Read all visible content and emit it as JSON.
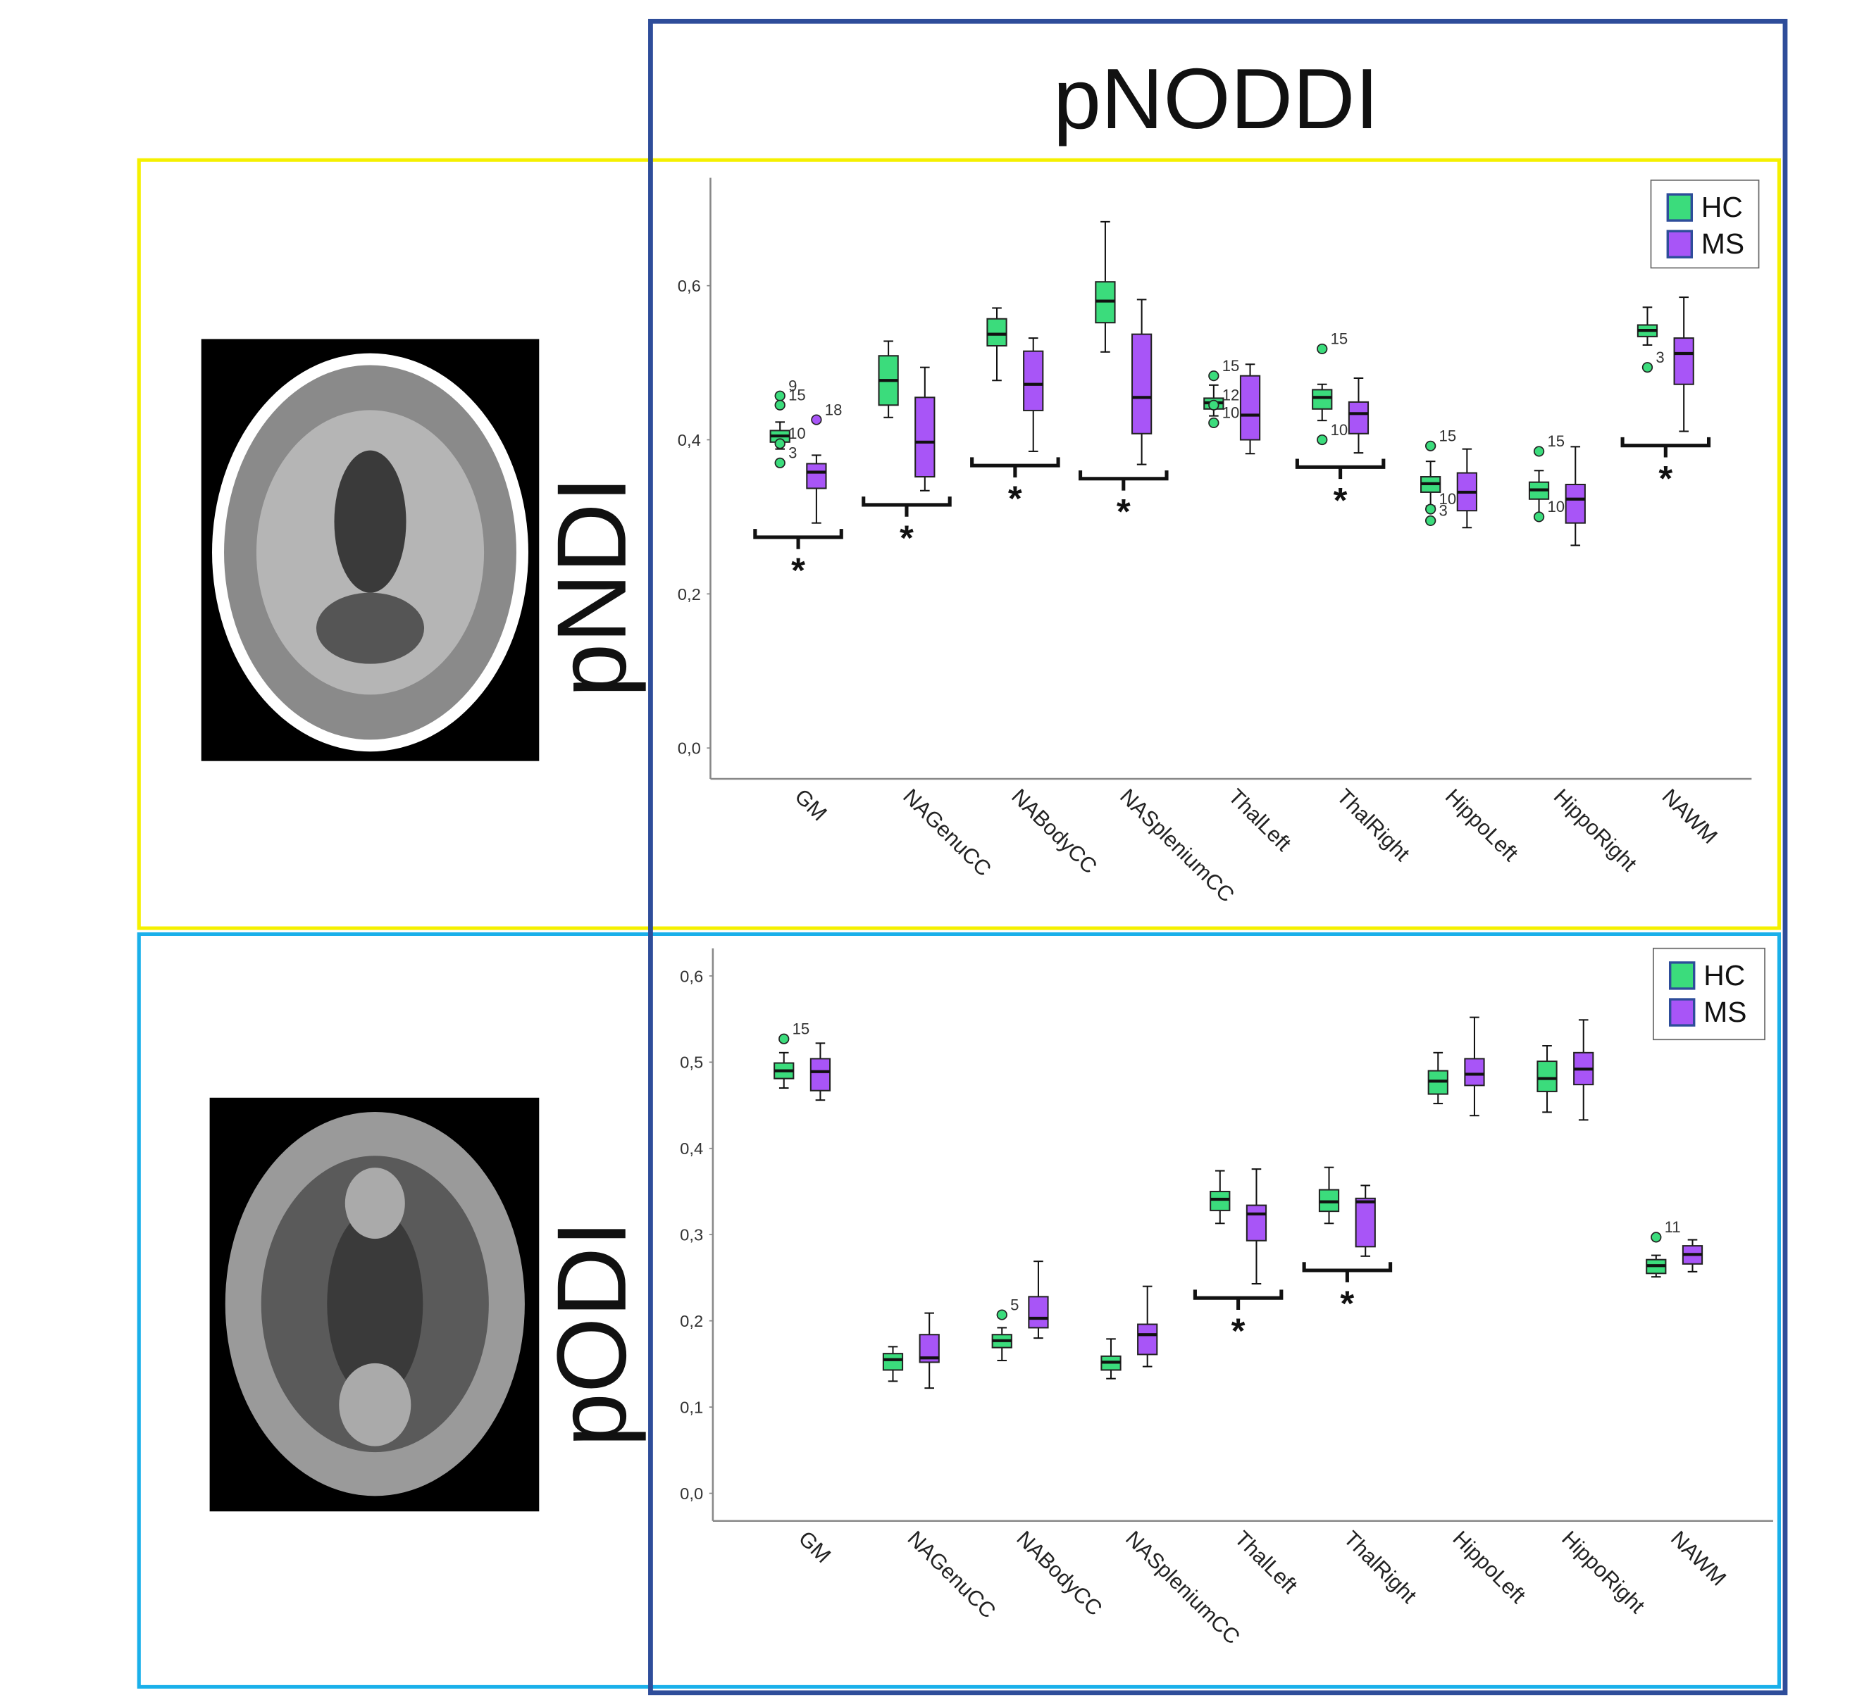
{
  "title": "pNODDI",
  "chart_data": [
    {
      "type": "box",
      "ylabel": "pNDI",
      "categories": [
        "GM",
        "NAGenuCC",
        "NABodyCC",
        "NASpleniumCC",
        "ThalLeft",
        "ThalRight",
        "HippoLeft",
        "HippoRight",
        "NAWM"
      ],
      "ylim": [
        -0.04,
        0.74
      ],
      "yticks": [
        {
          "value": 0,
          "label": "0,0"
        },
        {
          "value": 0.2,
          "label": "0,2"
        },
        {
          "value": 0.4,
          "label": "0,4"
        },
        {
          "value": 0.6,
          "label": "0,6"
        }
      ],
      "grid": false,
      "legend": "top-right",
      "significant": [
        true,
        true,
        true,
        true,
        false,
        true,
        false,
        false,
        true
      ],
      "significance_marker": "*",
      "series": [
        {
          "name": "HC",
          "color": "#3bdc7c",
          "boxes": [
            {
              "min": 0.388,
              "q1": 0.397,
              "median": 0.405,
              "q3": 0.412,
              "max": 0.423,
              "outliers": [
                {
                  "value": 0.457,
                  "label": "9"
                },
                {
                  "value": 0.445,
                  "label": "15"
                },
                {
                  "value": 0.395,
                  "label": "10"
                },
                {
                  "value": 0.37,
                  "label": "3"
                }
              ]
            },
            {
              "min": 0.429,
              "q1": 0.445,
              "median": 0.477,
              "q3": 0.509,
              "max": 0.528,
              "outliers": []
            },
            {
              "min": 0.477,
              "q1": 0.522,
              "median": 0.537,
              "q3": 0.557,
              "max": 0.571,
              "outliers": []
            },
            {
              "min": 0.514,
              "q1": 0.552,
              "median": 0.58,
              "q3": 0.605,
              "max": 0.683,
              "outliers": []
            },
            {
              "min": 0.431,
              "q1": 0.44,
              "median": 0.448,
              "q3": 0.454,
              "max": 0.471,
              "outliers": [
                {
                  "value": 0.483,
                  "label": "15"
                },
                {
                  "value": 0.445,
                  "label": "12"
                },
                {
                  "value": 0.422,
                  "label": "10"
                }
              ]
            },
            {
              "min": 0.425,
              "q1": 0.44,
              "median": 0.455,
              "q3": 0.465,
              "max": 0.472,
              "outliers": [
                {
                  "value": 0.518,
                  "label": "15"
                },
                {
                  "value": 0.4,
                  "label": "10"
                }
              ]
            },
            {
              "min": 0.314,
              "q1": 0.332,
              "median": 0.343,
              "q3": 0.352,
              "max": 0.372,
              "outliers": [
                {
                  "value": 0.392,
                  "label": "15"
                },
                {
                  "value": 0.31,
                  "label": "10"
                },
                {
                  "value": 0.295,
                  "label": "3"
                }
              ]
            },
            {
              "min": 0.302,
              "q1": 0.323,
              "median": 0.335,
              "q3": 0.345,
              "max": 0.36,
              "outliers": [
                {
                  "value": 0.385,
                  "label": "15"
                },
                {
                  "value": 0.3,
                  "label": "10"
                }
              ]
            },
            {
              "min": 0.523,
              "q1": 0.534,
              "median": 0.542,
              "q3": 0.549,
              "max": 0.572,
              "outliers": [
                {
                  "value": 0.494,
                  "label": "3"
                }
              ]
            }
          ]
        },
        {
          "name": "MS",
          "color": "#a855f7",
          "boxes": [
            {
              "min": 0.292,
              "q1": 0.337,
              "median": 0.358,
              "q3": 0.369,
              "max": 0.38,
              "outliers": [
                {
                  "value": 0.426,
                  "label": "18"
                }
              ]
            },
            {
              "min": 0.334,
              "q1": 0.352,
              "median": 0.397,
              "q3": 0.455,
              "max": 0.494,
              "outliers": []
            },
            {
              "min": 0.385,
              "q1": 0.438,
              "median": 0.472,
              "q3": 0.515,
              "max": 0.532,
              "outliers": []
            },
            {
              "min": 0.368,
              "q1": 0.408,
              "median": 0.455,
              "q3": 0.537,
              "max": 0.582,
              "outliers": []
            },
            {
              "min": 0.382,
              "q1": 0.4,
              "median": 0.432,
              "q3": 0.483,
              "max": 0.498,
              "outliers": []
            },
            {
              "min": 0.383,
              "q1": 0.408,
              "median": 0.434,
              "q3": 0.449,
              "max": 0.48,
              "outliers": []
            },
            {
              "min": 0.286,
              "q1": 0.308,
              "median": 0.332,
              "q3": 0.357,
              "max": 0.388,
              "outliers": []
            },
            {
              "min": 0.263,
              "q1": 0.292,
              "median": 0.323,
              "q3": 0.342,
              "max": 0.391,
              "outliers": []
            },
            {
              "min": 0.411,
              "q1": 0.472,
              "median": 0.512,
              "q3": 0.532,
              "max": 0.585,
              "outliers": []
            }
          ]
        }
      ]
    },
    {
      "type": "box",
      "ylabel": "pODI",
      "categories": [
        "GM",
        "NAGenuCC",
        "NABodyCC",
        "NASpleniumCC",
        "ThalLeft",
        "ThalRight",
        "HippoLeft",
        "HippoRight",
        "NAWM"
      ],
      "ylim": [
        -0.032,
        0.632
      ],
      "yticks": [
        {
          "value": 0,
          "label": "0,0"
        },
        {
          "value": 0.1,
          "label": "0,1"
        },
        {
          "value": 0.2,
          "label": "0,2"
        },
        {
          "value": 0.3,
          "label": "0,3"
        },
        {
          "value": 0.4,
          "label": "0,4"
        },
        {
          "value": 0.5,
          "label": "0,5"
        },
        {
          "value": 0.6,
          "label": "0,6"
        }
      ],
      "grid": false,
      "legend": "top-right",
      "significant": [
        false,
        false,
        false,
        false,
        true,
        true,
        false,
        false,
        false
      ],
      "significance_marker": "*",
      "series": [
        {
          "name": "HC",
          "color": "#3bdc7c",
          "boxes": [
            {
              "min": 0.47,
              "q1": 0.481,
              "median": 0.49,
              "q3": 0.499,
              "max": 0.511,
              "outliers": [
                {
                  "value": 0.527,
                  "label": "15"
                }
              ]
            },
            {
              "min": 0.13,
              "q1": 0.143,
              "median": 0.155,
              "q3": 0.162,
              "max": 0.17,
              "outliers": []
            },
            {
              "min": 0.154,
              "q1": 0.169,
              "median": 0.177,
              "q3": 0.184,
              "max": 0.192,
              "outliers": [
                {
                  "value": 0.207,
                  "label": "5"
                }
              ]
            },
            {
              "min": 0.133,
              "q1": 0.143,
              "median": 0.152,
              "q3": 0.159,
              "max": 0.179,
              "outliers": []
            },
            {
              "min": 0.313,
              "q1": 0.328,
              "median": 0.341,
              "q3": 0.35,
              "max": 0.374,
              "outliers": []
            },
            {
              "min": 0.313,
              "q1": 0.327,
              "median": 0.338,
              "q3": 0.352,
              "max": 0.378,
              "outliers": []
            },
            {
              "min": 0.452,
              "q1": 0.463,
              "median": 0.478,
              "q3": 0.49,
              "max": 0.511,
              "outliers": []
            },
            {
              "min": 0.442,
              "q1": 0.466,
              "median": 0.481,
              "q3": 0.501,
              "max": 0.519,
              "outliers": []
            },
            {
              "min": 0.251,
              "q1": 0.255,
              "median": 0.264,
              "q3": 0.271,
              "max": 0.276,
              "outliers": [
                {
                  "value": 0.297,
                  "label": "11"
                }
              ]
            }
          ]
        },
        {
          "name": "MS",
          "color": "#a855f7",
          "boxes": [
            {
              "min": 0.456,
              "q1": 0.467,
              "median": 0.489,
              "q3": 0.504,
              "max": 0.522,
              "outliers": []
            },
            {
              "min": 0.122,
              "q1": 0.152,
              "median": 0.157,
              "q3": 0.184,
              "max": 0.209,
              "outliers": []
            },
            {
              "min": 0.18,
              "q1": 0.192,
              "median": 0.203,
              "q3": 0.228,
              "max": 0.269,
              "outliers": []
            },
            {
              "min": 0.147,
              "q1": 0.161,
              "median": 0.184,
              "q3": 0.196,
              "max": 0.24,
              "outliers": []
            },
            {
              "min": 0.243,
              "q1": 0.293,
              "median": 0.324,
              "q3": 0.334,
              "max": 0.376,
              "outliers": []
            },
            {
              "min": 0.275,
              "q1": 0.286,
              "median": 0.338,
              "q3": 0.342,
              "max": 0.357,
              "outliers": []
            },
            {
              "min": 0.438,
              "q1": 0.473,
              "median": 0.486,
              "q3": 0.504,
              "max": 0.552,
              "outliers": []
            },
            {
              "min": 0.433,
              "q1": 0.474,
              "median": 0.492,
              "q3": 0.511,
              "max": 0.549,
              "outliers": []
            },
            {
              "min": 0.257,
              "q1": 0.266,
              "median": 0.277,
              "q3": 0.287,
              "max": 0.294,
              "outliers": []
            }
          ]
        }
      ]
    }
  ]
}
